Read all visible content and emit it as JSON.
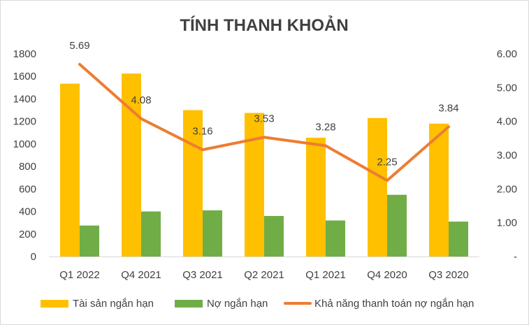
{
  "chart_data": {
    "type": "bar+line",
    "title": "TÍNH THANH KHOẢN",
    "categories": [
      "Q1 2022",
      "Q4 2021",
      "Q3 2021",
      "Q2 2021",
      "Q1 2021",
      "Q4 2020",
      "Q3 2020"
    ],
    "series": [
      {
        "name": "Tài sản ngắn hạn",
        "type": "bar",
        "axis": "left",
        "color": "#FFC000",
        "values": [
          1535,
          1625,
          1300,
          1275,
          1055,
          1230,
          1180
        ]
      },
      {
        "name": "Nợ ngắn hạn",
        "type": "bar",
        "axis": "left",
        "color": "#70AD47",
        "values": [
          275,
          400,
          410,
          360,
          320,
          548,
          310
        ]
      },
      {
        "name": "Khả năng thanh toán nợ ngắn hạn",
        "type": "line",
        "axis": "right",
        "color": "#ED7D31",
        "values": [
          5.69,
          4.08,
          3.16,
          3.53,
          3.28,
          2.25,
          3.84
        ],
        "labels": [
          "5.69",
          "4.08",
          "3.16",
          "3.53",
          "3.28",
          "2.25",
          "3.84"
        ]
      }
    ],
    "y_left": {
      "min": 0,
      "max": 1800,
      "step": 200,
      "ticks": [
        "0",
        "200",
        "400",
        "600",
        "800",
        "1000",
        "1200",
        "1400",
        "1600",
        "1800"
      ]
    },
    "y_right": {
      "min": 0,
      "max": 6,
      "step": 1,
      "ticks": [
        "-",
        "1.00",
        "2.00",
        "3.00",
        "4.00",
        "5.00",
        "6.00"
      ]
    },
    "grid": false,
    "legend_position": "bottom"
  }
}
